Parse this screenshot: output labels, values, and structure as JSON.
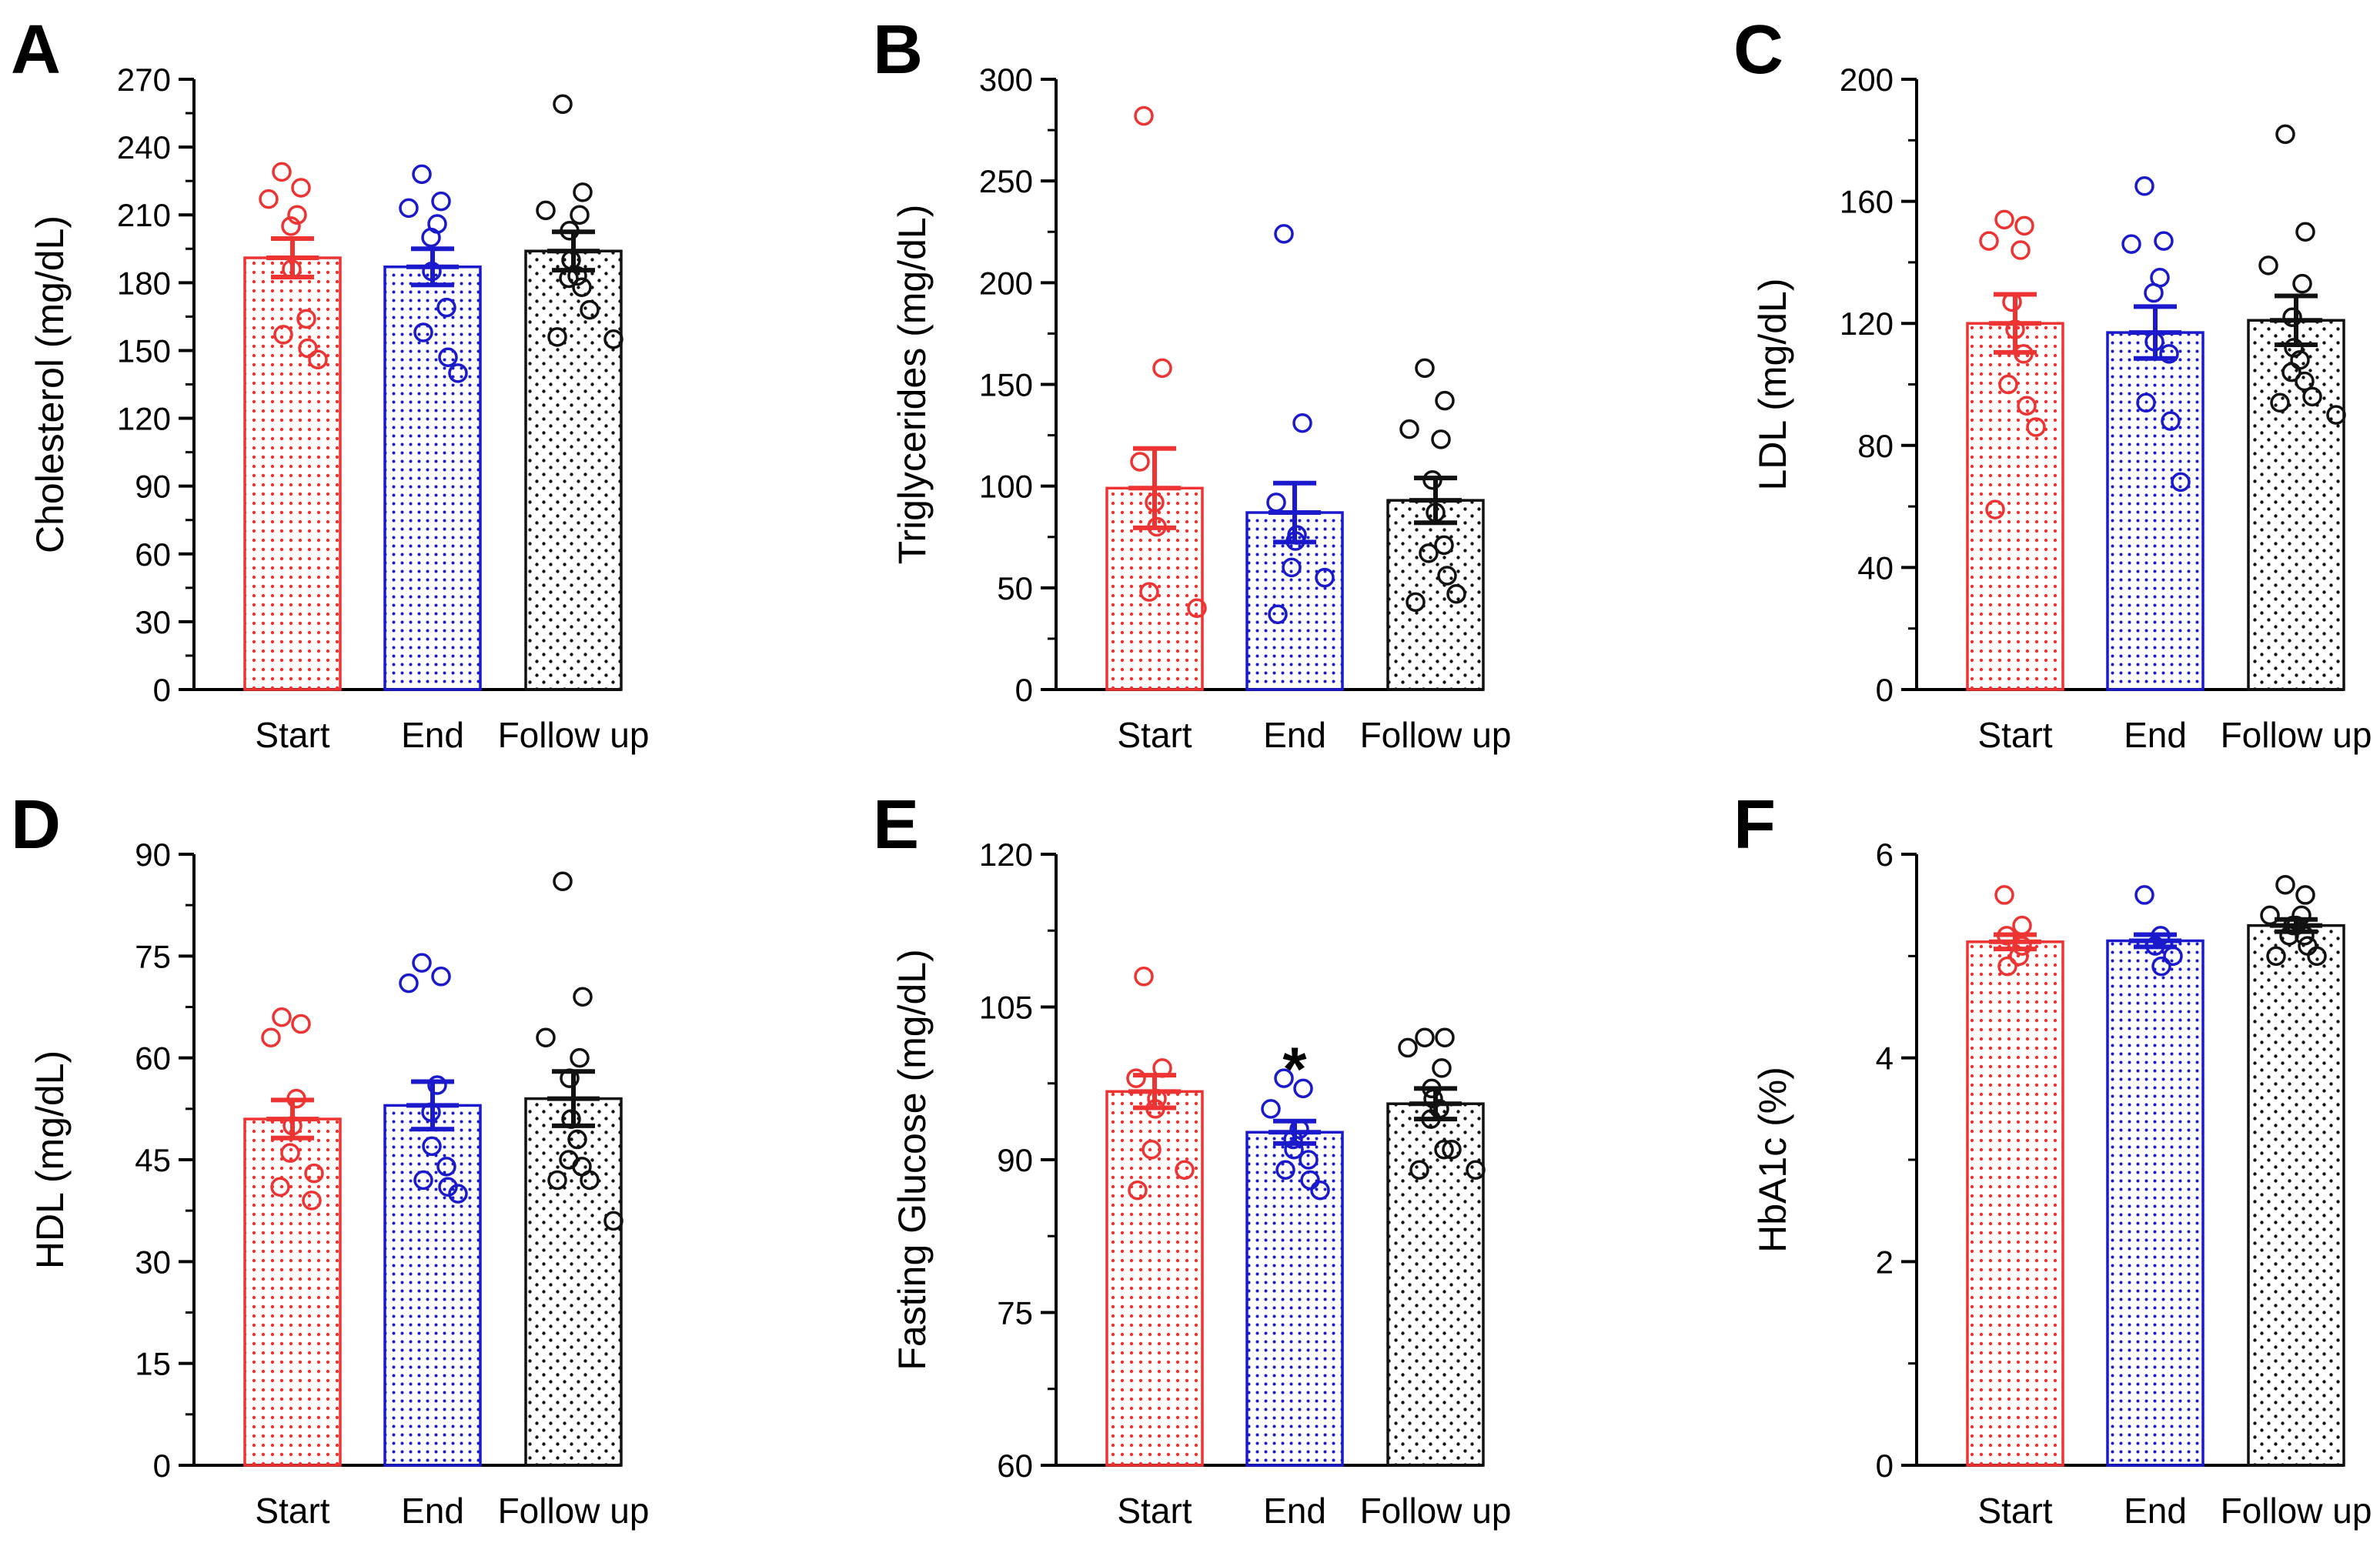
{
  "figure": {
    "groups": [
      "Start",
      "End",
      "Follow up"
    ],
    "colors": {
      "Start": "#ee3333",
      "End": "#1a1acc",
      "Follow up": "#111111"
    }
  },
  "chart_data": [
    {
      "panel": "A",
      "type": "bar",
      "ylabel": "Cholesterol (mg/dL)",
      "categories": [
        "Start",
        "End",
        "Follow up"
      ],
      "ylim": [
        0,
        270
      ],
      "yticks": [
        0,
        30,
        60,
        90,
        120,
        150,
        180,
        210,
        240,
        270
      ],
      "means": [
        191,
        187,
        194
      ],
      "sem": [
        8.5,
        8,
        8.5
      ],
      "points": [
        [
          229,
          222,
          217,
          210,
          205,
          186,
          164,
          157,
          151,
          146
        ],
        [
          228,
          216,
          213,
          206,
          200,
          185,
          169,
          158,
          147,
          140
        ],
        [
          259,
          220,
          212,
          210,
          203,
          190,
          183,
          182,
          178,
          168,
          156,
          155
        ]
      ],
      "significance": [
        "",
        "",
        ""
      ]
    },
    {
      "panel": "B",
      "type": "bar",
      "ylabel": "Triglycerides (mg/dL)",
      "categories": [
        "Start",
        "End",
        "Follow up"
      ],
      "ylim": [
        0,
        300
      ],
      "yticks": [
        0,
        50,
        100,
        150,
        200,
        250,
        300
      ],
      "means": [
        99,
        87,
        93
      ],
      "sem": [
        19.5,
        14.5,
        11
      ],
      "points": [
        [
          282,
          158,
          112,
          92,
          80,
          48,
          40
        ],
        [
          224,
          131,
          92,
          76,
          73,
          60,
          55,
          37
        ],
        [
          158,
          142,
          128,
          123,
          103,
          87,
          71,
          67,
          56,
          47,
          43
        ]
      ],
      "significance": [
        "",
        "",
        ""
      ]
    },
    {
      "panel": "C",
      "type": "bar",
      "ylabel": "LDL (mg/dL)",
      "categories": [
        "Start",
        "End",
        "Follow up"
      ],
      "ylim": [
        0,
        200
      ],
      "yticks": [
        0,
        40,
        80,
        120,
        160,
        200
      ],
      "means": [
        120,
        117,
        121
      ],
      "sem": [
        9.5,
        8.5,
        8
      ],
      "points": [
        [
          154,
          152,
          147,
          144,
          127,
          118,
          110,
          100,
          93,
          86,
          59
        ],
        [
          165,
          147,
          146,
          135,
          130,
          114,
          110,
          94,
          88,
          68
        ],
        [
          182,
          150,
          139,
          133,
          122,
          112,
          108,
          104,
          101,
          96,
          94,
          90
        ]
      ],
      "significance": [
        "",
        "",
        ""
      ]
    },
    {
      "panel": "D",
      "type": "bar",
      "ylabel": "HDL (mg/dL)",
      "categories": [
        "Start",
        "End",
        "Follow up"
      ],
      "ylim": [
        0,
        90
      ],
      "yticks": [
        0,
        15,
        30,
        45,
        60,
        75,
        90
      ],
      "means": [
        51,
        53,
        54
      ],
      "sem": [
        2.8,
        3.5,
        4
      ],
      "points": [
        [
          66,
          65,
          63,
          54,
          50,
          46,
          43,
          41,
          39
        ],
        [
          74,
          72,
          71,
          56,
          52,
          47,
          44,
          42,
          41,
          40
        ],
        [
          86,
          69,
          63,
          60,
          57,
          51,
          48,
          45,
          44,
          42,
          42,
          36
        ]
      ],
      "significance": [
        "",
        "",
        ""
      ]
    },
    {
      "panel": "E",
      "type": "bar",
      "ylabel": "Fasting Glucose (mg/dL)",
      "categories": [
        "Start",
        "End",
        "Follow up"
      ],
      "ylim": [
        60,
        120
      ],
      "yticks": [
        60,
        75,
        90,
        105,
        120
      ],
      "means": [
        96.7,
        92.7,
        95.5
      ],
      "sem": [
        1.6,
        1.1,
        1.5
      ],
      "points": [
        [
          108,
          99,
          98,
          96,
          95,
          91,
          89,
          87
        ],
        [
          98,
          97,
          95,
          93,
          92,
          91,
          90,
          89,
          88,
          87
        ],
        [
          102,
          102,
          101,
          99,
          97,
          96,
          95,
          94,
          91,
          91,
          89,
          89
        ]
      ],
      "significance": [
        "",
        "*",
        ""
      ]
    },
    {
      "panel": "F",
      "type": "bar",
      "ylabel": "HbA1c (%)",
      "categories": [
        "Start",
        "End",
        "Follow up"
      ],
      "ylim": [
        0,
        6
      ],
      "yticks": [
        0,
        2,
        4,
        6
      ],
      "means": [
        5.14,
        5.15,
        5.3
      ],
      "sem": [
        0.07,
        0.06,
        0.06
      ],
      "points": [
        [
          5.6,
          5.3,
          5.2,
          5.1,
          5.0,
          4.9
        ],
        [
          5.6,
          5.2,
          5.1,
          5.0,
          4.9
        ],
        [
          5.7,
          5.6,
          5.4,
          5.4,
          5.3,
          5.3,
          5.2,
          5.2,
          5.1,
          5.0,
          5.0
        ]
      ],
      "significance": [
        "",
        "",
        ""
      ]
    }
  ]
}
